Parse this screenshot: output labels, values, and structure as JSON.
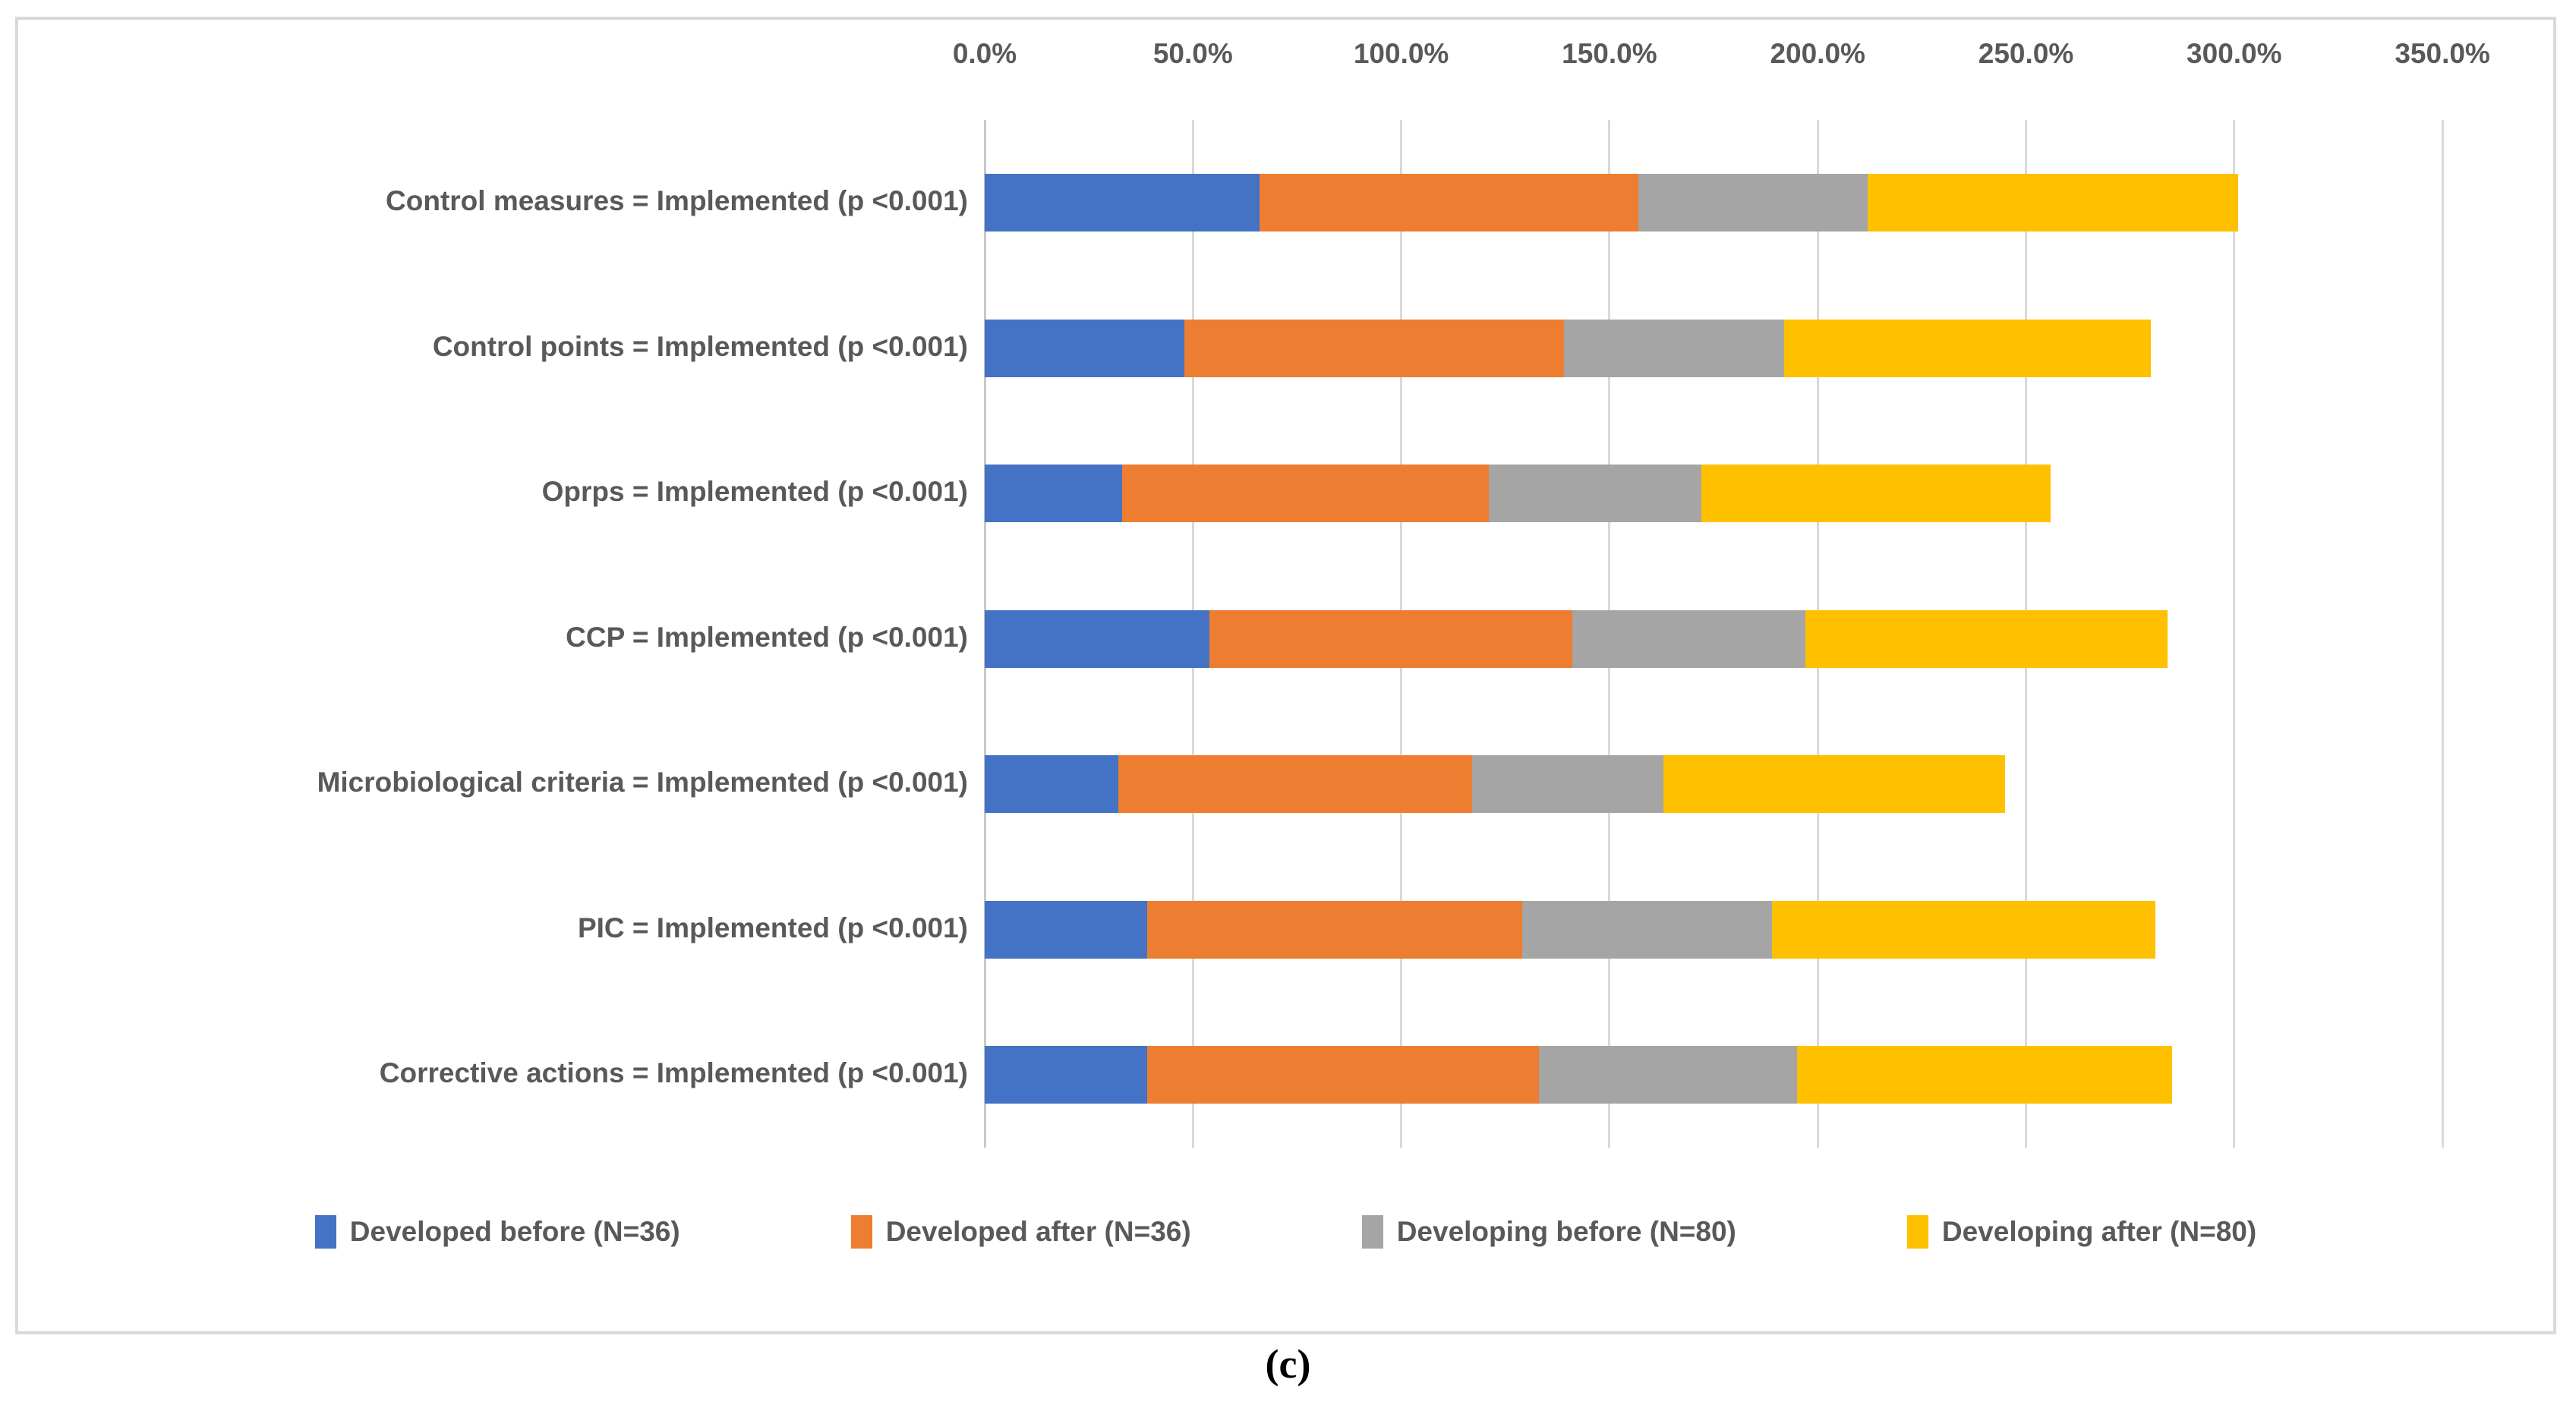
{
  "caption": "(c)",
  "chart_data": {
    "type": "bar",
    "orientation": "horizontal",
    "stacked": true,
    "axis_position": "top",
    "grid": true,
    "xlim": [
      0,
      350
    ],
    "tick_step_percent": 50,
    "tick_labels": [
      "0.0%",
      "50.0%",
      "100.0%",
      "150.0%",
      "200.0%",
      "250.0%",
      "300.0%",
      "350.0%"
    ],
    "categories": [
      "Control measures = Implemented (p <0.001)",
      "Control points = Implemented (p <0.001)",
      "Oprps = Implemented (p <0.001)",
      "CCP = Implemented (p <0.001)",
      "Microbiological criteria = Implemented (p <0.001)",
      "PIC = Implemented (p <0.001)",
      "Corrective actions = Implemented (p <0.001)"
    ],
    "series": [
      {
        "name": "Developed before (N=36)",
        "color": "#4472C4",
        "values": [
          66,
          48,
          33,
          54,
          32,
          39,
          39
        ]
      },
      {
        "name": "Developed after (N=36)",
        "color": "#ED7D31",
        "values": [
          91,
          91,
          88,
          87,
          85,
          90,
          94
        ]
      },
      {
        "name": "Developing before (N=80)",
        "color": "#A5A5A5",
        "values": [
          55,
          53,
          51,
          56,
          46,
          60,
          62
        ]
      },
      {
        "name": "Developing after (N=80)",
        "color": "#FFC000",
        "values": [
          89,
          88,
          84,
          87,
          82,
          92,
          90
        ]
      }
    ],
    "legend_position": "bottom",
    "title": "",
    "xlabel": "",
    "ylabel": ""
  }
}
